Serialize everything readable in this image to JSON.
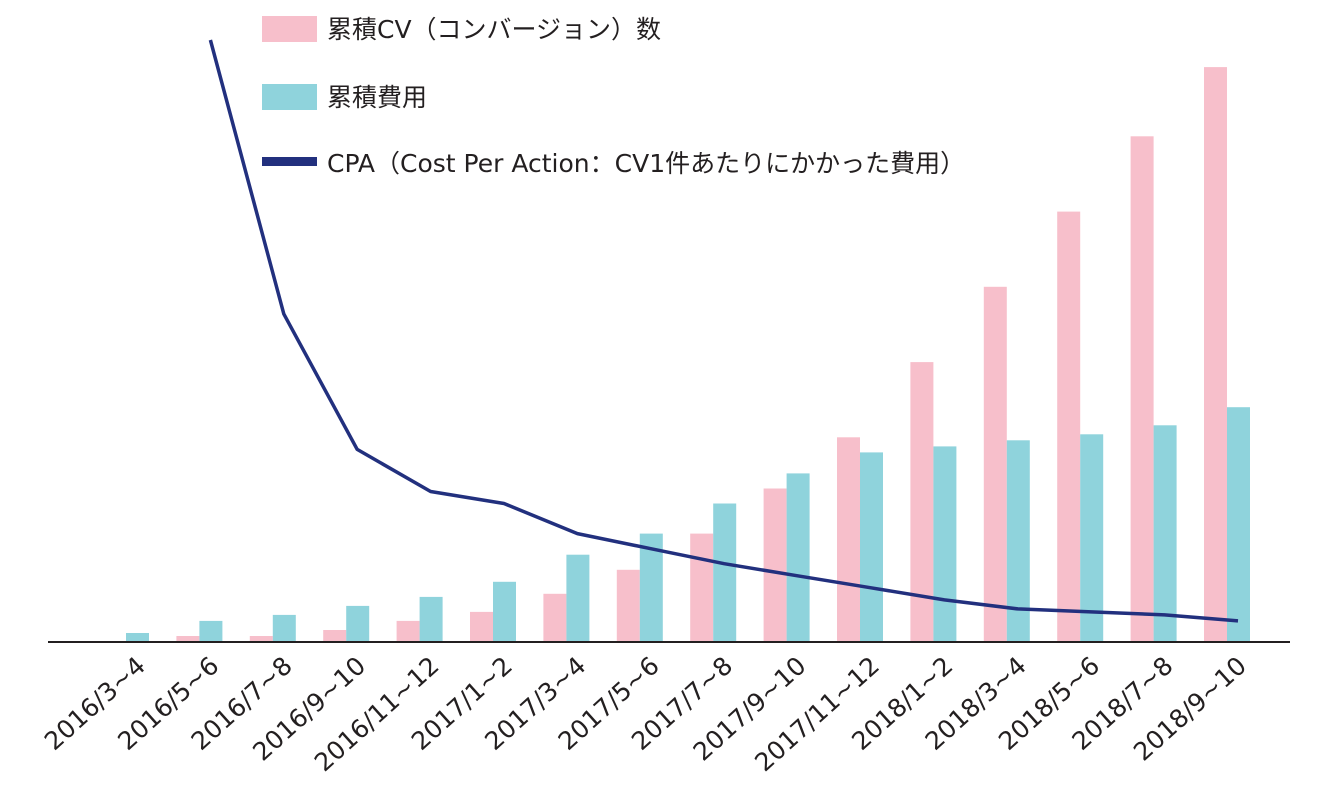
{
  "chart_data": {
    "type": "bar",
    "categories": [
      "2016/3~4",
      "2016/5~6",
      "2016/7~8",
      "2016/9~10",
      "2016/11~12",
      "2017/1~2",
      "2017/3~4",
      "2017/5~6",
      "2017/7~8",
      "2017/9~10",
      "2017/11~12",
      "2018/1~2",
      "2018/3~4",
      "2018/5~6",
      "2018/7~8",
      "2018/9~10"
    ],
    "series": [
      {
        "name": "累積CV（コンバージョン）数",
        "kind": "bar",
        "color": "#f7bfcb",
        "values": [
          0,
          1,
          1,
          2,
          3.5,
          5,
          8,
          12,
          18,
          25.5,
          34,
          46.5,
          59,
          71.5,
          84,
          95.5
        ]
      },
      {
        "name": "累積費用",
        "kind": "bar",
        "color": "#8fd3dc",
        "values": [
          1.5,
          3.5,
          4.5,
          6,
          7.5,
          10,
          14.5,
          18,
          23,
          28,
          31.5,
          32.5,
          33.5,
          34.5,
          36,
          39
        ]
      },
      {
        "name": "CPA（Cost Per Action：CV1件あたりにかかった費用）",
        "kind": "line",
        "color": "#22307e",
        "values": [
          null,
          100,
          54.5,
          32,
          25,
          23,
          18,
          15.5,
          13,
          11,
          9,
          7,
          5.5,
          5,
          4.5,
          3.5
        ]
      }
    ],
    "title": "",
    "xlabel": "",
    "ylabel": "",
    "ylim": [
      0,
      100
    ],
    "grid": false,
    "legend": "top"
  }
}
